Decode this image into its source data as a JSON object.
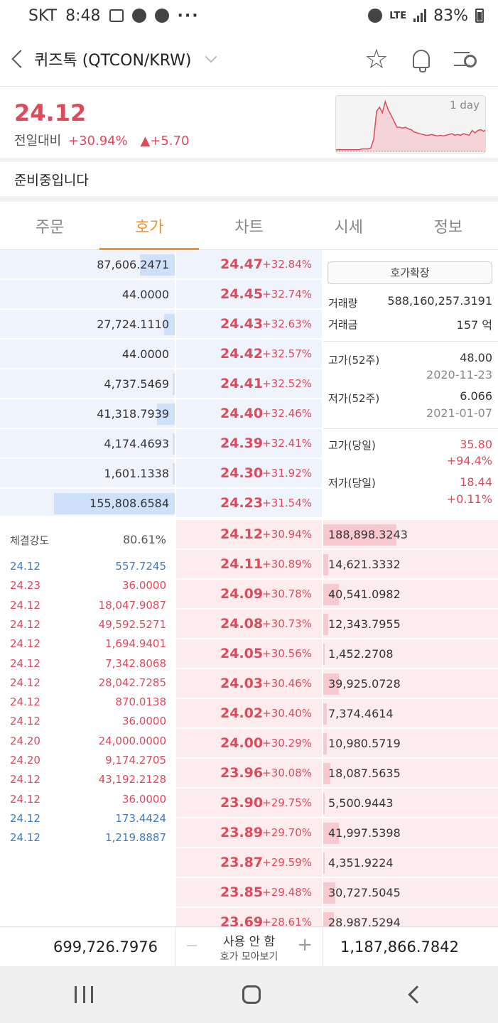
{
  "status_bar": {
    "carrier": "SKT",
    "time": "8:48",
    "battery": "83%",
    "network": "LTE"
  },
  "header": {
    "title": "퀴즈톡 (QTCON/KRW)"
  },
  "price": {
    "current": "24.12",
    "compare_label": "전일대비",
    "change_pct": "+30.94%",
    "change_amt": "▲+5.70"
  },
  "sparkline": {
    "label": "1 day",
    "values": [
      2,
      2,
      2,
      2,
      2,
      2,
      2,
      2,
      2,
      3,
      3,
      3,
      4,
      15,
      50,
      55,
      48,
      62,
      52,
      45,
      38,
      30,
      30,
      29,
      30,
      28,
      27,
      24,
      23,
      22,
      21,
      20,
      20,
      21,
      20,
      19,
      20,
      19,
      20,
      21,
      22,
      20,
      21,
      20,
      22,
      21,
      20,
      26,
      23,
      26,
      27,
      25,
      28
    ]
  },
  "notice": "준비중입니다",
  "tabs": [
    {
      "label": "주문",
      "active": false
    },
    {
      "label": "호가",
      "active": true
    },
    {
      "label": "차트",
      "active": false
    },
    {
      "label": "시세",
      "active": false
    },
    {
      "label": "정보",
      "active": false
    }
  ],
  "asks": [
    {
      "volume": "87,606.2471",
      "price": "24.47",
      "pct": "+32.84%",
      "bar": 0.2
    },
    {
      "volume": "44.0000",
      "price": "24.45",
      "pct": "+32.74%",
      "bar": 0.0
    },
    {
      "volume": "27,724.1110",
      "price": "24.43",
      "pct": "+32.63%",
      "bar": 0.06
    },
    {
      "volume": "44.0000",
      "price": "24.42",
      "pct": "+32.57%",
      "bar": 0.0
    },
    {
      "volume": "4,737.5469",
      "price": "24.41",
      "pct": "+32.52%",
      "bar": 0.01
    },
    {
      "volume": "41,318.7939",
      "price": "24.40",
      "pct": "+32.46%",
      "bar": 0.1
    },
    {
      "volume": "4,174.4693",
      "price": "24.39",
      "pct": "+32.41%",
      "bar": 0.01
    },
    {
      "volume": "1,601.1338",
      "price": "24.30",
      "pct": "+31.92%",
      "bar": 0.01
    },
    {
      "volume": "155,808.6584",
      "price": "24.23",
      "pct": "+31.54%",
      "bar": 0.69
    }
  ],
  "bids": [
    {
      "volume": "188,898.3243",
      "price": "24.12",
      "pct": "+30.94%",
      "bar": 0.42
    },
    {
      "volume": "14,621.3332",
      "price": "24.11",
      "pct": "+30.89%",
      "bar": 0.03
    },
    {
      "volume": "40,541.0982",
      "price": "24.09",
      "pct": "+30.78%",
      "bar": 0.09
    },
    {
      "volume": "12,343.7955",
      "price": "24.08",
      "pct": "+30.73%",
      "bar": 0.03
    },
    {
      "volume": "1,452.2708",
      "price": "24.05",
      "pct": "+30.56%",
      "bar": 0.01
    },
    {
      "volume": "39,925.0728",
      "price": "24.03",
      "pct": "+30.46%",
      "bar": 0.09
    },
    {
      "volume": "7,374.4614",
      "price": "24.02",
      "pct": "+30.40%",
      "bar": 0.02
    },
    {
      "volume": "10,980.5719",
      "price": "24.00",
      "pct": "+30.29%",
      "bar": 0.02
    },
    {
      "volume": "18,087.5635",
      "price": "23.96",
      "pct": "+30.08%",
      "bar": 0.04
    },
    {
      "volume": "5,500.9443",
      "price": "23.90",
      "pct": "+29.75%",
      "bar": 0.01
    },
    {
      "volume": "41,997.5398",
      "price": "23.89",
      "pct": "+29.70%",
      "bar": 0.09
    },
    {
      "volume": "4,351.9224",
      "price": "23.87",
      "pct": "+29.59%",
      "bar": 0.01
    },
    {
      "volume": "30,727.5045",
      "price": "23.85",
      "pct": "+29.48%",
      "bar": 0.07
    },
    {
      "volume": "28,987.5294",
      "price": "23.69",
      "pct": "+28.61%",
      "bar": 0.06
    }
  ],
  "info": {
    "expand_button": "호가확장",
    "volume_label": "거래량",
    "volume": "588,160,257.3191",
    "amount_label": "거래금",
    "amount": "157 억",
    "high52_label": "고가(52주)",
    "high52": "48.00",
    "high52_date": "2020-11-23",
    "low52_label": "저가(52주)",
    "low52": "6.066",
    "low52_date": "2021-01-07",
    "high_day_label": "고가(당일)",
    "high_day": "35.80",
    "high_day_pct": "+94.4%",
    "low_day_label": "저가(당일)",
    "low_day": "18.44",
    "low_day_pct": "+0.11%"
  },
  "trades": {
    "strength_label": "체결강도",
    "strength": "80.61%",
    "rows": [
      {
        "price": "24.12",
        "volume": "557.7245",
        "side": "blue"
      },
      {
        "price": "24.23",
        "volume": "36.0000",
        "side": "red"
      },
      {
        "price": "24.12",
        "volume": "18,047.9087",
        "side": "red"
      },
      {
        "price": "24.12",
        "volume": "49,592.5271",
        "side": "red"
      },
      {
        "price": "24.12",
        "volume": "1,694.9401",
        "side": "red"
      },
      {
        "price": "24.12",
        "volume": "7,342.8068",
        "side": "red"
      },
      {
        "price": "24.12",
        "volume": "28,042.7285",
        "side": "red"
      },
      {
        "price": "24.12",
        "volume": "870.0138",
        "side": "red"
      },
      {
        "price": "24.12",
        "volume": "36.0000",
        "side": "red"
      },
      {
        "price": "24.20",
        "volume": "24,000.0000",
        "side": "red"
      },
      {
        "price": "24.20",
        "volume": "9,174.2705",
        "side": "red"
      },
      {
        "price": "24.12",
        "volume": "43,192.2128",
        "side": "red"
      },
      {
        "price": "24.12",
        "volume": "36.0000",
        "side": "red"
      },
      {
        "price": "24.12",
        "volume": "173.4424",
        "side": "blue"
      },
      {
        "price": "24.12",
        "volume": "1,219.8887",
        "side": "blue"
      }
    ]
  },
  "bottom": {
    "ask_total": "699,726.7976",
    "mode_label": "사용 안 함",
    "mode_sub": "호가 모아보기",
    "minus": "−",
    "plus": "+",
    "bid_total": "1,187,866.7842"
  }
}
